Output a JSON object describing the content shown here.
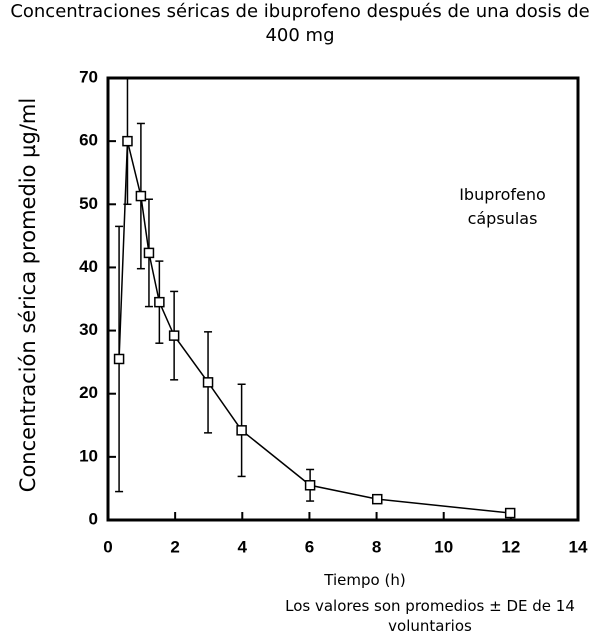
{
  "chart_data": {
    "type": "line",
    "title": "Concentraciones séricas de ibuprofeno después de una dosis de 400 mg",
    "xlabel": "Tiempo (h)",
    "ylabel": "Concentración sérica promedio µg/ml",
    "annotation": "Ibuprofeno cápsulas",
    "note": "Los valores son promedios ± DE de 14 voluntarios",
    "x": [
      0.33,
      0.58,
      0.98,
      1.22,
      1.53,
      1.97,
      2.98,
      3.98,
      6.02,
      8.02,
      11.98
    ],
    "series": [
      {
        "color": "#000000",
        "values": [
          25.5,
          60,
          51.3,
          42.3,
          34.5,
          29.2,
          21.8,
          14.2,
          5.5,
          3.3,
          1.1
        ],
        "errors": [
          21,
          10,
          11.5,
          8.5,
          6.5,
          7,
          8,
          7.3,
          2.5,
          0,
          0
        ]
      }
    ],
    "xlim": [
      0,
      14
    ],
    "xticks": [
      0,
      2,
      4,
      6,
      8,
      10,
      12,
      14
    ],
    "ylim": [
      0,
      70
    ],
    "yticks": [
      0,
      10,
      20,
      30,
      40,
      50,
      60,
      70
    ]
  }
}
